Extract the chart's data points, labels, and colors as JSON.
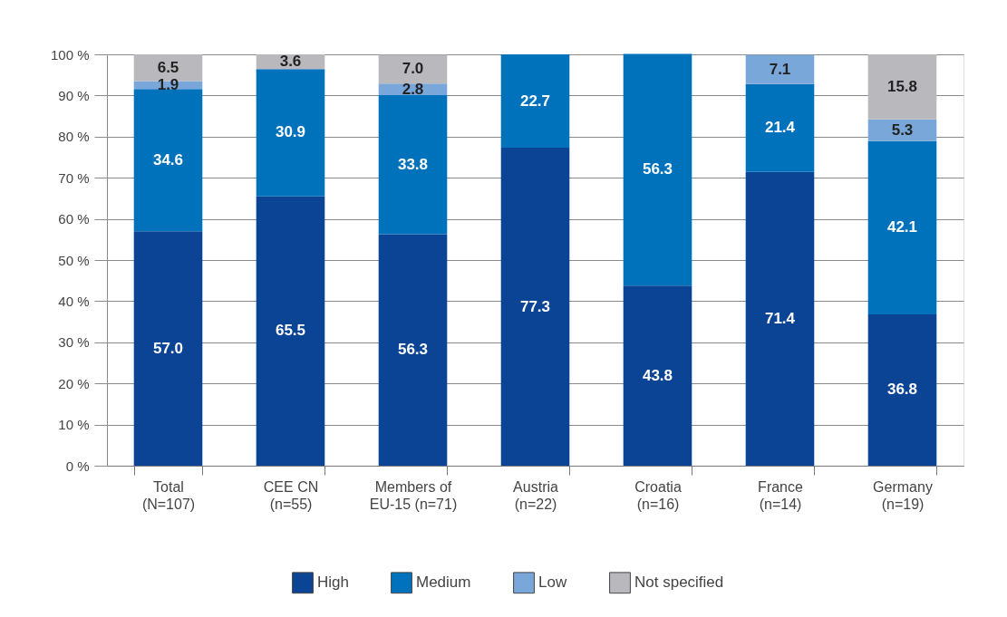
{
  "chart_data": {
    "type": "bar",
    "stacked": true,
    "categories": [
      "Total\n(N=107)",
      "CEE CN\n(n=55)",
      "Members of\nEU-15 (n=71)",
      "Austria\n(n=22)",
      "Croatia\n(n=16)",
      "France\n(n=14)",
      "Germany\n(n=19)"
    ],
    "series": [
      {
        "name": "High",
        "color": "#0b4395",
        "values": [
          57.0,
          65.5,
          56.3,
          77.3,
          43.8,
          71.4,
          36.8
        ],
        "value_labels": [
          "57.0",
          "65.5",
          "56.3",
          "77.3",
          "43.8",
          "71.4",
          "36.8"
        ]
      },
      {
        "name": "Medium",
        "color": "#0072bc",
        "values": [
          34.6,
          30.9,
          33.8,
          22.7,
          56.3,
          21.4,
          42.1
        ],
        "value_labels": [
          "34.6",
          "30.9",
          "33.8",
          "22.7",
          "56.3",
          "21.4",
          "42.1"
        ]
      },
      {
        "name": "Low",
        "color": "#7aa7d9",
        "values": [
          1.9,
          null,
          2.8,
          null,
          null,
          7.1,
          5.3
        ],
        "value_labels": [
          "1.9",
          null,
          "2.8",
          null,
          null,
          "7.1",
          "5.3"
        ]
      },
      {
        "name": "Not specified",
        "color": "#b9b9bd",
        "values": [
          6.5,
          3.6,
          7.0,
          null,
          null,
          null,
          15.8
        ],
        "value_labels": [
          "6.5",
          "3.6",
          "7.0",
          null,
          null,
          null,
          "15.8"
        ]
      }
    ],
    "ylim": [
      0,
      100
    ],
    "yticks": [
      {
        "value": 0,
        "label": "0 %"
      },
      {
        "value": 10,
        "label": "10 %"
      },
      {
        "value": 20,
        "label": "20 %"
      },
      {
        "value": 30,
        "label": "30 %"
      },
      {
        "value": 40,
        "label": "40 %"
      },
      {
        "value": 50,
        "label": "50 %"
      },
      {
        "value": 60,
        "label": "60 %"
      },
      {
        "value": 70,
        "label": "70 %"
      },
      {
        "value": 80,
        "label": "80 %"
      },
      {
        "value": 90,
        "label": "90 %"
      },
      {
        "value": 100,
        "label": "100 %"
      }
    ],
    "grid": "y",
    "legend": "bottom"
  }
}
